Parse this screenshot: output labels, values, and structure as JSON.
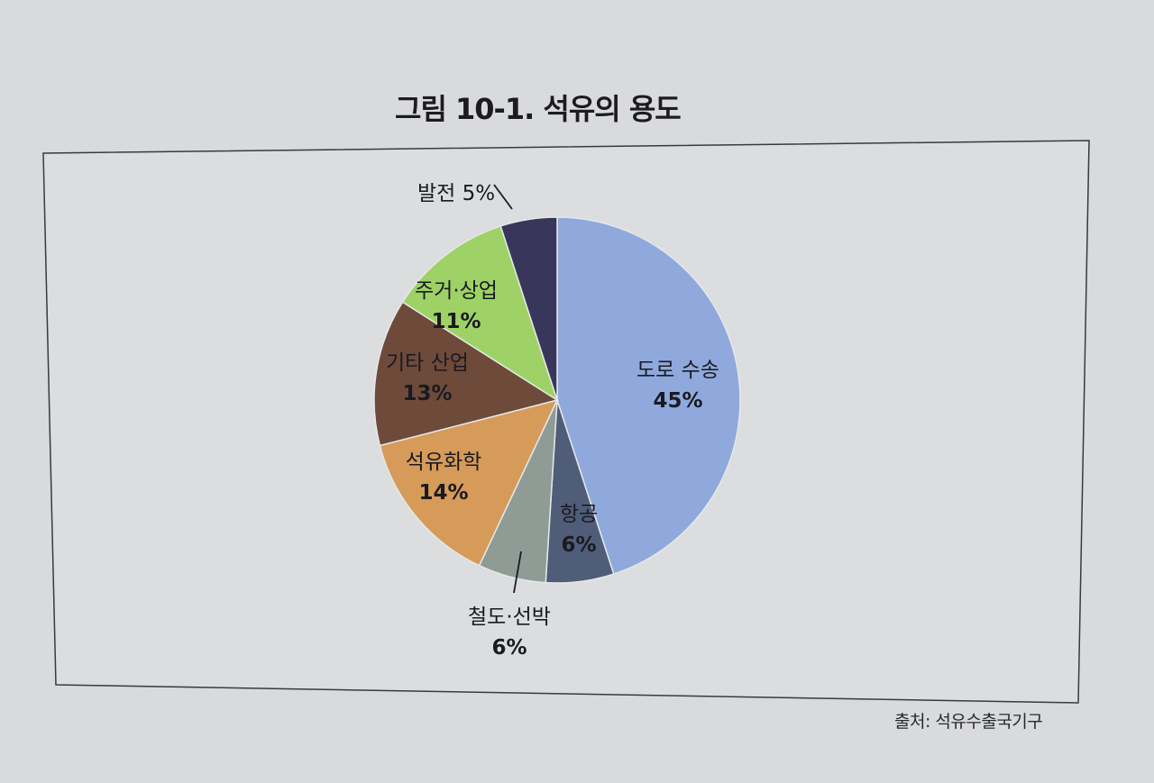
{
  "figure": {
    "title": "그림 10-1. 석유의 용도",
    "source": "출처: 석유수출국기구"
  },
  "chart_data": {
    "type": "pie",
    "title": "그림 10-1. 석유의 용도",
    "slices": [
      {
        "label": "도로 수송",
        "value": 45,
        "value_label": "45%",
        "color": "#8fa9dc"
      },
      {
        "label": "항공",
        "value": 6,
        "value_label": "6%",
        "color": "#4f5d78"
      },
      {
        "label": "철도·선박",
        "value": 6,
        "value_label": "6%",
        "color": "#8f9c96"
      },
      {
        "label": "석유화학",
        "value": 14,
        "value_label": "14%",
        "color": "#d69a59"
      },
      {
        "label": "기타 산업",
        "value": 13,
        "value_label": "13%",
        "color": "#6d4a3a"
      },
      {
        "label": "주거·상업",
        "value": 11,
        "value_label": "11%",
        "color": "#9ed266"
      },
      {
        "label": "발전",
        "value": 5,
        "value_label": "5%",
        "color": "#38365a"
      }
    ],
    "start": "12 o'clock",
    "direction": "clockwise",
    "legend": "none"
  }
}
